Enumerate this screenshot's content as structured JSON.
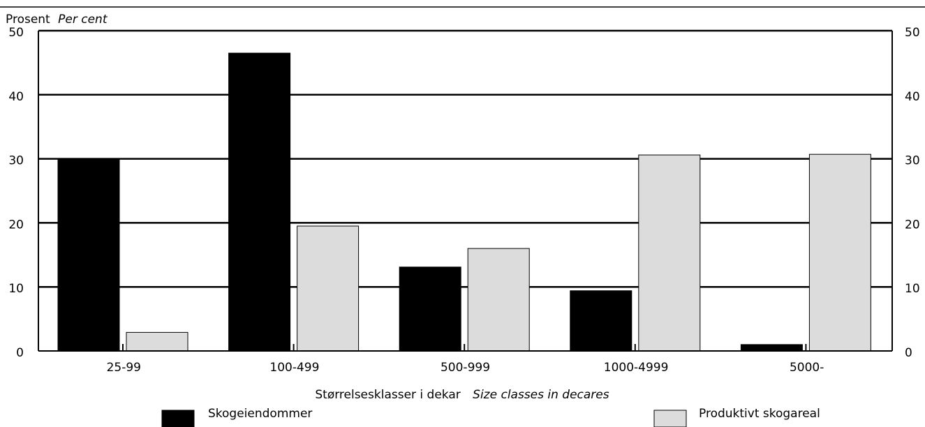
{
  "chart_data": {
    "type": "bar",
    "ylabel": "Prosent",
    "ylabel_en": "Per cent",
    "xlabel": "Størrelsesklasser i dekar",
    "xlabel_en": "Size classes in decares",
    "categories": [
      "25-99",
      "100-499",
      "500-999",
      "1000-4999",
      "5000-"
    ],
    "series": [
      {
        "name": "Skogeiendommer",
        "values": [
          30.0,
          46.5,
          13.1,
          9.4,
          1.0
        ],
        "color": "#000000"
      },
      {
        "name": "Produktivt skogareal",
        "values": [
          2.9,
          19.5,
          16.0,
          30.6,
          30.7
        ],
        "color": "#dcdcdc"
      }
    ],
    "ylim": [
      0,
      50
    ],
    "yticks": [
      "0",
      "10",
      "20",
      "30",
      "40",
      "50"
    ],
    "grid": true,
    "legend_position": "bottom"
  }
}
